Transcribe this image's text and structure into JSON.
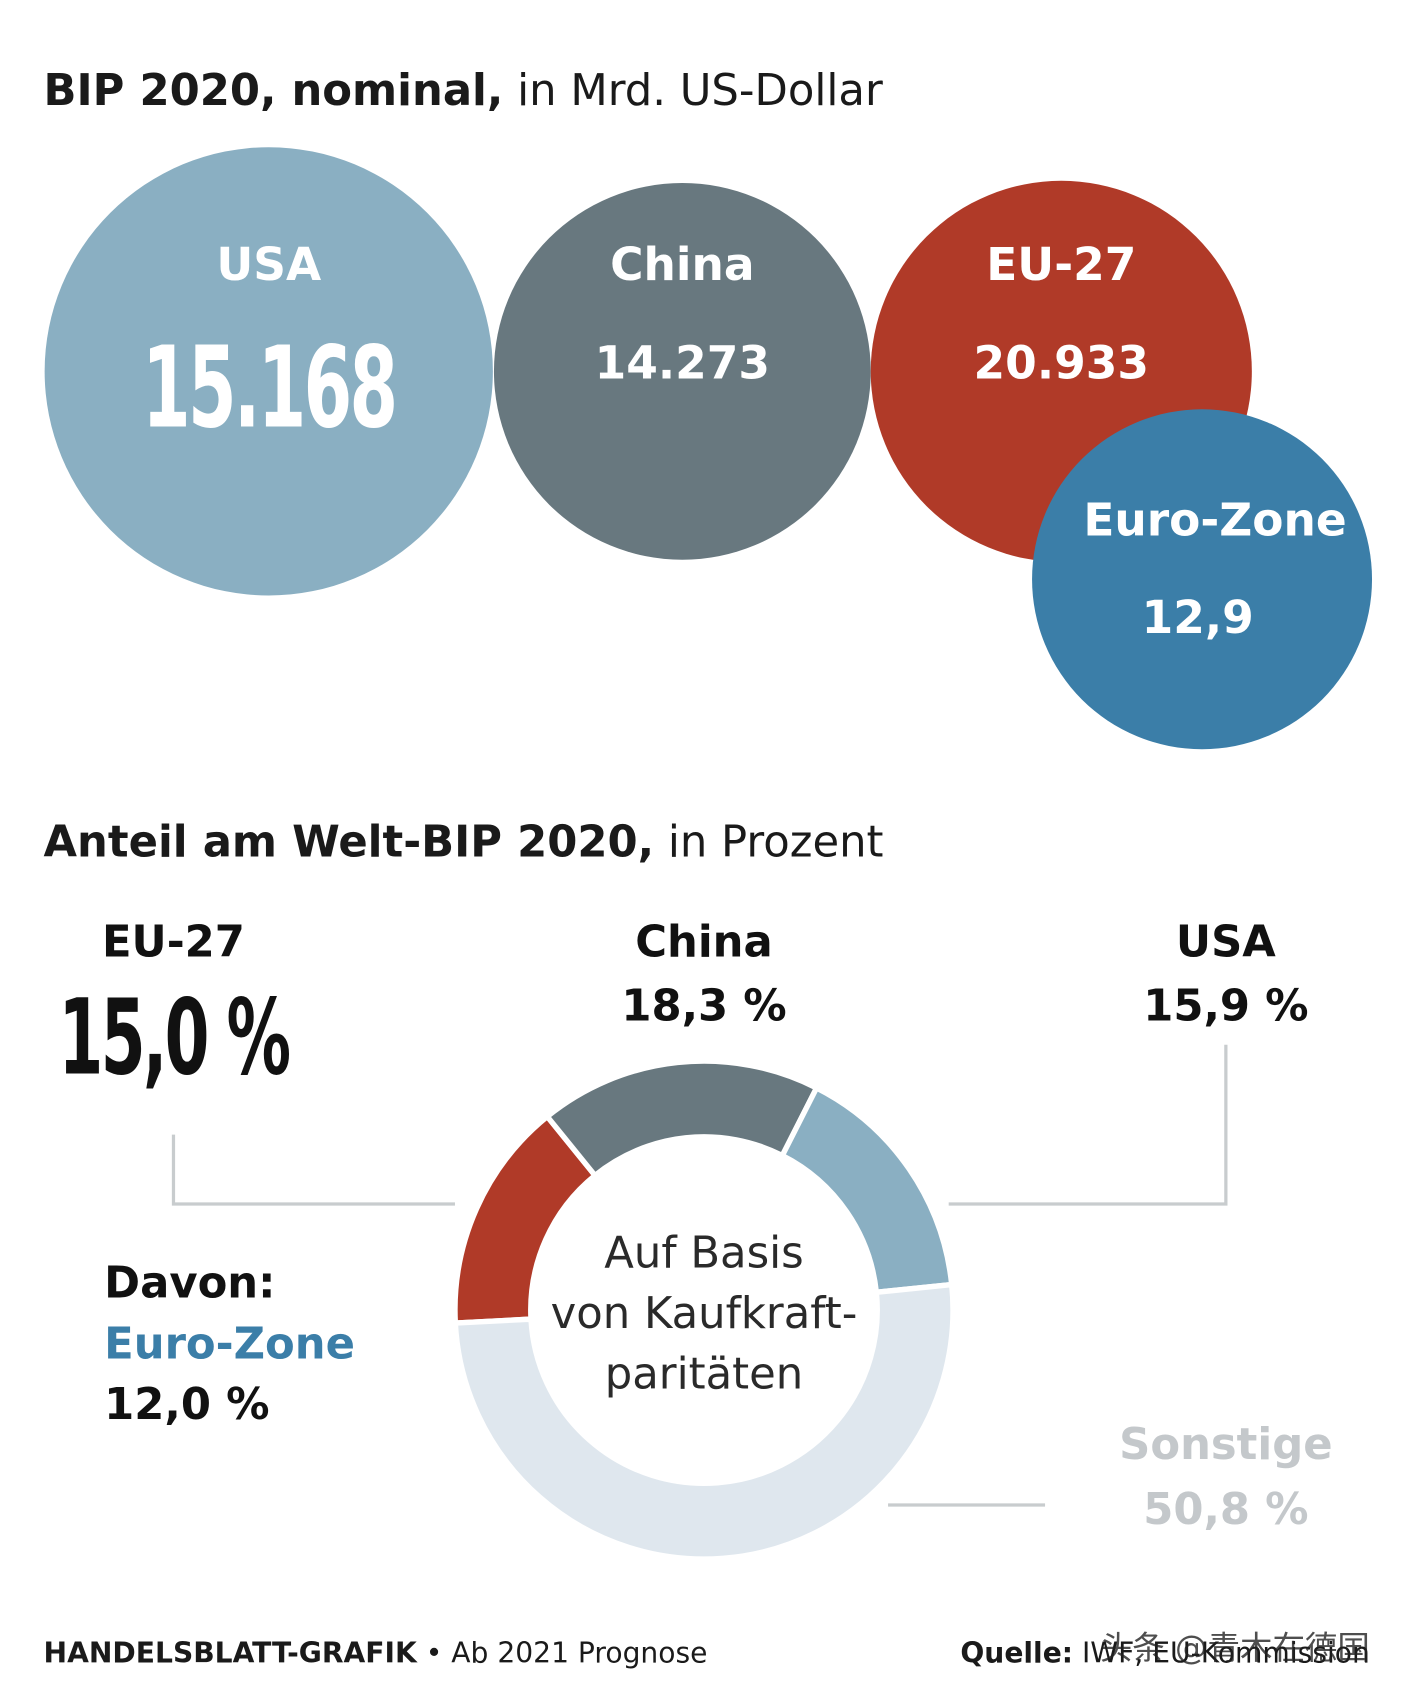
{
  "chart_data": [
    {
      "type": "bubble",
      "title": "BIP 2020, nominal,",
      "subtitle": "in Mrd. US-Dollar",
      "categories": [
        "USA",
        "China",
        "EU-27",
        "Euro-Zone"
      ],
      "values": [
        15168,
        14273,
        20933,
        12.9
      ],
      "value_labels": [
        "15.168",
        "14.273",
        "20.933",
        "12,9"
      ],
      "colors": [
        "#8aafc2",
        "#68787f",
        "#b03a28",
        "#3b7ea8"
      ]
    },
    {
      "type": "donut",
      "title": "Anteil am Welt-BIP 2020,",
      "subtitle": "in Prozent",
      "categories": [
        "EU-27",
        "China",
        "USA",
        "Sonstige"
      ],
      "values": [
        15.0,
        18.3,
        15.9,
        50.8
      ],
      "value_labels": [
        "15,0 %",
        "18,3 %",
        "15,9 %",
        "50,8 %"
      ],
      "colors": [
        "#b03a28",
        "#68787f",
        "#8aafc2",
        "#dfe7ee"
      ],
      "center_text": [
        "Auf Basis",
        "von Kaufkraft-",
        "paritäten"
      ],
      "annotation": {
        "label": "Davon:",
        "name": "Euro-Zone",
        "value": 12.0,
        "value_label": "12,0 %"
      }
    }
  ],
  "footer": {
    "brand": "HANDELSBLATT-GRAFIK",
    "note": "• Ab 2021 Prognose",
    "source_label": "Quelle:",
    "source": "IWF, EU-Kommission",
    "watermark": "头条 @青木在德国"
  }
}
